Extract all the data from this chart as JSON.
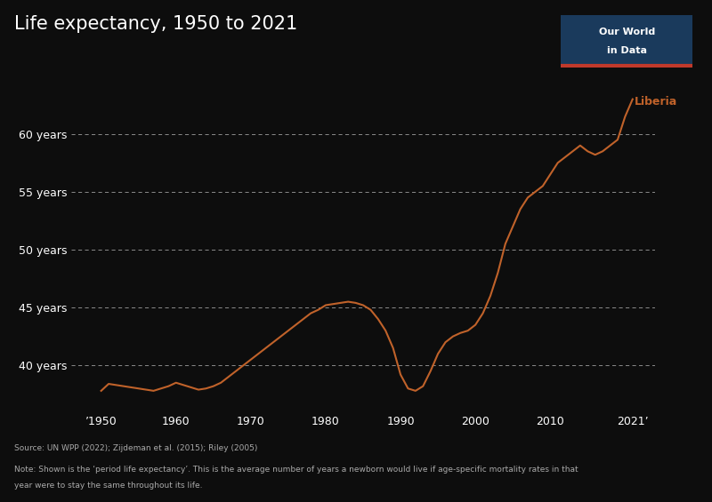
{
  "title": "Life expectancy, 1950 to 2021",
  "line_color": "#c0622a",
  "bg_color": "#0d0d0d",
  "text_color": "#ffffff",
  "grid_color": "#555555",
  "ylabel_color": "#cccccc",
  "source_text": "Source: UN WPP (2022); Zijdeman et al. (2015); Riley (2005)",
  "note_text": "Note: Shown is the ‘period life expectancy’. This is the average number of years a newborn would live if age-specific mortality rates in that",
  "note_text2": "year were to stay the same throughout its life.",
  "owid_box_color": "#1a3a5c",
  "owid_red": "#c0392b",
  "ytick_labels": [
    "40 years",
    "45 years",
    "50 years",
    "55 years",
    "60 years"
  ],
  "ytick_values": [
    40,
    45,
    50,
    55,
    60
  ],
  "ylim": [
    36.0,
    65.5
  ],
  "xlim": [
    1946,
    2024
  ],
  "xticks": [
    1950,
    1960,
    1970,
    1980,
    1990,
    2000,
    2010,
    2021
  ],
  "xtick_labels": [
    "’1950",
    "1960",
    "1970",
    "1980",
    "1990",
    "2000",
    "2010",
    "2021’"
  ],
  "years": [
    1950,
    1951,
    1952,
    1953,
    1954,
    1955,
    1956,
    1957,
    1958,
    1959,
    1960,
    1961,
    1962,
    1963,
    1964,
    1965,
    1966,
    1967,
    1968,
    1969,
    1970,
    1971,
    1972,
    1973,
    1974,
    1975,
    1976,
    1977,
    1978,
    1979,
    1980,
    1981,
    1982,
    1983,
    1984,
    1985,
    1986,
    1987,
    1988,
    1989,
    1990,
    1991,
    1992,
    1993,
    1994,
    1995,
    1996,
    1997,
    1998,
    1999,
    2000,
    2001,
    2002,
    2003,
    2004,
    2005,
    2006,
    2007,
    2008,
    2009,
    2010,
    2011,
    2012,
    2013,
    2014,
    2015,
    2016,
    2017,
    2018,
    2019,
    2020,
    2021
  ],
  "life_exp": [
    37.8,
    38.4,
    38.3,
    38.2,
    38.1,
    38.0,
    37.9,
    37.8,
    38.0,
    38.2,
    38.5,
    38.3,
    38.1,
    37.9,
    38.0,
    38.2,
    38.5,
    39.0,
    39.5,
    40.0,
    40.5,
    41.0,
    41.5,
    42.0,
    42.5,
    43.0,
    43.5,
    44.0,
    44.5,
    44.8,
    45.2,
    45.3,
    45.4,
    45.5,
    45.4,
    45.2,
    44.8,
    44.0,
    43.0,
    41.5,
    39.2,
    38.0,
    37.8,
    38.2,
    39.5,
    41.0,
    42.0,
    42.5,
    42.8,
    43.0,
    43.5,
    44.5,
    46.0,
    48.0,
    50.5,
    52.0,
    53.5,
    54.5,
    55.0,
    55.5,
    56.5,
    57.5,
    58.0,
    58.5,
    59.0,
    58.5,
    58.2,
    58.5,
    59.0,
    59.5,
    61.5,
    63.0
  ]
}
